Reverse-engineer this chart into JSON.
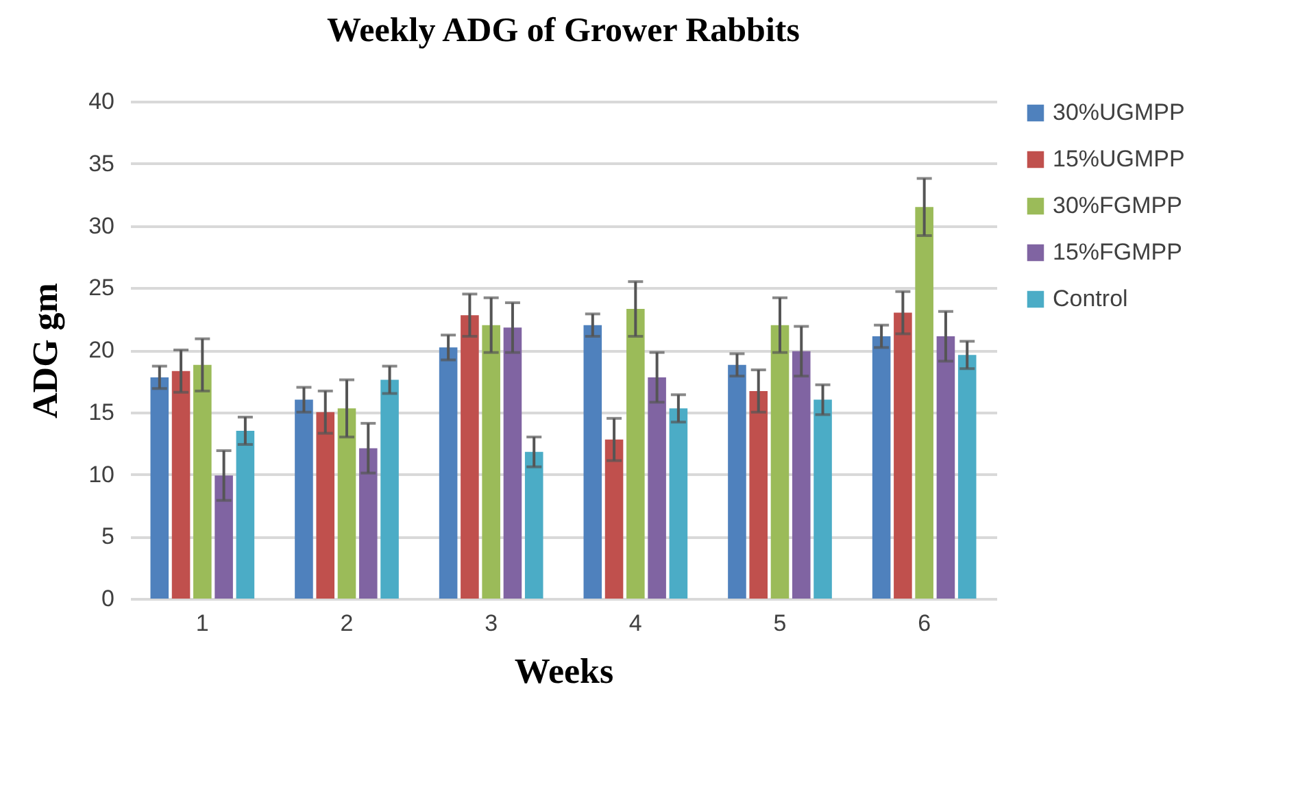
{
  "chart_data": {
    "type": "bar",
    "title": "Weekly ADG of Grower Rabbits",
    "xlabel": "Weeks",
    "ylabel": "ADG gm",
    "categories": [
      "1",
      "2",
      "3",
      "4",
      "5",
      "6"
    ],
    "series": [
      {
        "name": "30%UGMPP",
        "color": "#4f81bd",
        "values": [
          17.8,
          16,
          20.2,
          22,
          18.8,
          21.1
        ],
        "errors": [
          0.9,
          1,
          1,
          0.9,
          0.9,
          0.9
        ]
      },
      {
        "name": "15%UGMPP",
        "color": "#c0504d",
        "values": [
          18.3,
          15,
          22.8,
          12.8,
          16.7,
          23
        ],
        "errors": [
          1.7,
          1.7,
          1.7,
          1.7,
          1.7,
          1.7
        ]
      },
      {
        "name": "30%FGMPP",
        "color": "#9bbb59",
        "values": [
          18.8,
          15.3,
          22,
          23.3,
          22,
          31.5
        ],
        "errors": [
          2.1,
          2.3,
          2.2,
          2.2,
          2.2,
          2.3
        ]
      },
      {
        "name": "15%FGMPP",
        "color": "#8064a2",
        "values": [
          9.9,
          12.1,
          21.8,
          17.8,
          19.9,
          21.1
        ],
        "errors": [
          2,
          2,
          2,
          2,
          2,
          2
        ]
      },
      {
        "name": "Control",
        "color": "#4bacc6",
        "values": [
          13.5,
          17.6,
          11.8,
          15.3,
          16,
          19.6
        ],
        "errors": [
          1.1,
          1.1,
          1.2,
          1.1,
          1.2,
          1.1
        ]
      }
    ],
    "ylim": [
      0,
      40
    ],
    "yticks": [
      0,
      5,
      10,
      15,
      20,
      25,
      30,
      35,
      40
    ],
    "grid": "y",
    "legend": "right"
  }
}
